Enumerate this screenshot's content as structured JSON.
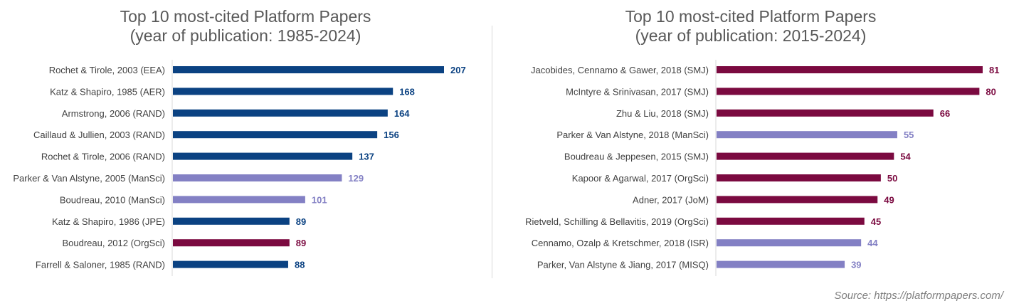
{
  "colors": {
    "navy": "#0b4282",
    "lavender": "#8380c4",
    "maroon": "#7b0a40",
    "axis": "#d9d9d9",
    "label": "#404040"
  },
  "source": "Source: https://platformpapers.com/",
  "chart_data": [
    {
      "type": "bar",
      "orientation": "horizontal",
      "title_line1": "Top 10 most-cited Platform Papers",
      "title_line2": "(year of publication: 1985-2024)",
      "xlim": [
        0,
        207
      ],
      "grid": false,
      "categories": [
        "Rochet & Tirole, 2003 (EEA)",
        "Katz & Shapiro, 1985 (AER)",
        "Armstrong, 2006 (RAND)",
        "Caillaud & Jullien, 2003 (RAND)",
        "Rochet & Tirole, 2006 (RAND)",
        "Parker & Van Alstyne, 2005 (ManSci)",
        "Boudreau, 2010 (ManSci)",
        "Katz & Shapiro, 1986 (JPE)",
        "Boudreau, 2012 (OrgSci)",
        "Farrell & Saloner, 1985 (RAND)"
      ],
      "values": [
        207,
        168,
        164,
        156,
        137,
        129,
        101,
        89,
        89,
        88
      ],
      "value_labels": [
        "207",
        "168",
        "164",
        "156",
        "137",
        "129",
        "101",
        "89",
        "89",
        "88"
      ],
      "bar_colors": [
        "#0b4282",
        "#0b4282",
        "#0b4282",
        "#0b4282",
        "#0b4282",
        "#8380c4",
        "#8380c4",
        "#0b4282",
        "#7b0a40",
        "#0b4282"
      ]
    },
    {
      "type": "bar",
      "orientation": "horizontal",
      "title_line1": "Top 10 most-cited Platform Papers",
      "title_line2": "(year of publication: 2015-2024)",
      "xlim": [
        0,
        81
      ],
      "grid": false,
      "categories": [
        "Jacobides, Cennamo & Gawer, 2018 (SMJ)",
        "McIntyre & Srinivasan, 2017 (SMJ)",
        "Zhu & Liu, 2018 (SMJ)",
        "Parker & Van Alstyne, 2018 (ManSci)",
        "Boudreau & Jeppesen, 2015 (SMJ)",
        "Kapoor & Agarwal, 2017 (OrgSci)",
        "Adner, 2017 (JoM)",
        "Rietveld, Schilling & Bellavitis, 2019 (OrgSci)",
        "Cennamo, Ozalp & Kretschmer, 2018 (ISR)",
        "Parker, Van Alstyne & Jiang, 2017 (MISQ)"
      ],
      "values": [
        81,
        80,
        66,
        55,
        54,
        50,
        49,
        45,
        44,
        39
      ],
      "value_labels": [
        "81",
        "80",
        "66",
        "55",
        "54",
        "50",
        "49",
        "45",
        "44",
        "39"
      ],
      "bar_colors": [
        "#7b0a40",
        "#7b0a40",
        "#7b0a40",
        "#8380c4",
        "#7b0a40",
        "#7b0a40",
        "#7b0a40",
        "#7b0a40",
        "#8380c4",
        "#8380c4"
      ]
    }
  ]
}
